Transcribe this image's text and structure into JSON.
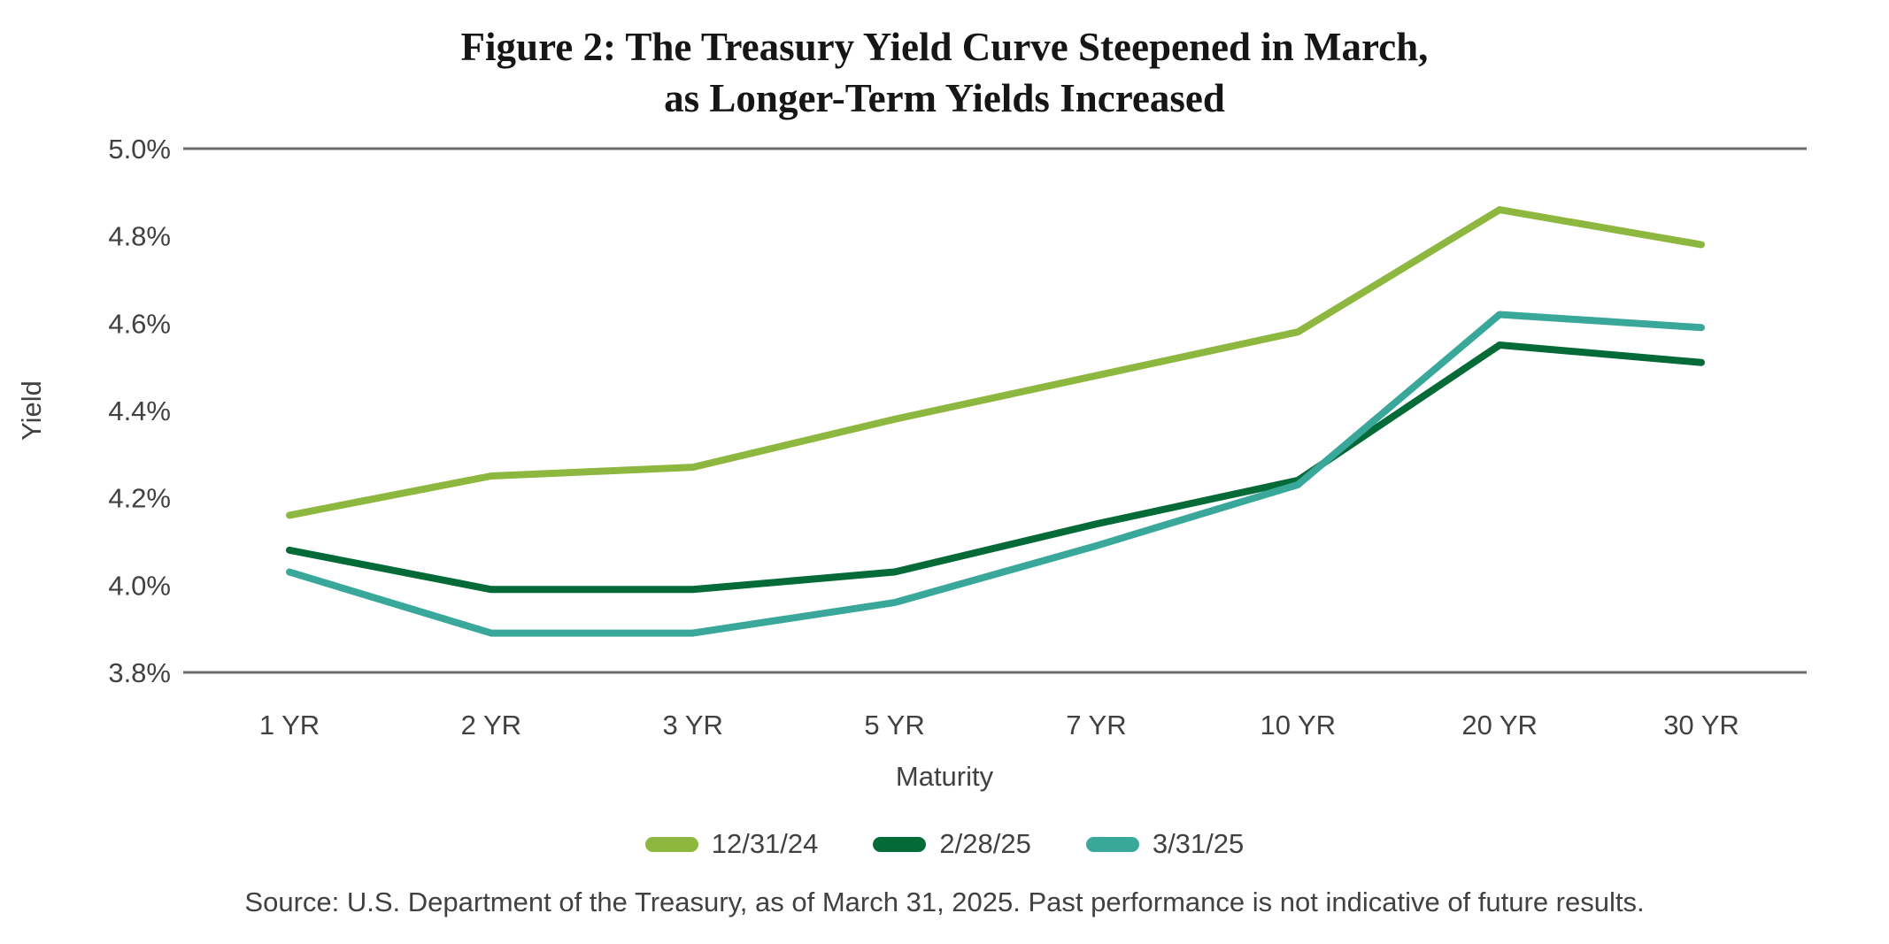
{
  "title": {
    "line1": "Figure 2: The Treasury Yield Curve Steepened in March,",
    "line2": "as Longer-Term Yields Increased"
  },
  "chart_data": {
    "type": "line",
    "categories": [
      "1 YR",
      "2 YR",
      "3 YR",
      "5 YR",
      "7 YR",
      "10 YR",
      "20 YR",
      "30 YR"
    ],
    "series": [
      {
        "name": "12/31/24",
        "color": "#8DB73E",
        "values": [
          4.16,
          4.25,
          4.27,
          4.38,
          4.48,
          4.58,
          4.86,
          4.78
        ]
      },
      {
        "name": "2/28/25",
        "color": "#046A38",
        "values": [
          4.08,
          3.99,
          3.99,
          4.03,
          4.14,
          4.24,
          4.55,
          4.51
        ]
      },
      {
        "name": "3/31/25",
        "color": "#3AA79B",
        "values": [
          4.03,
          3.89,
          3.89,
          3.96,
          4.09,
          4.23,
          4.62,
          4.59
        ]
      }
    ],
    "xlabel": "Maturity",
    "ylabel": "Yield",
    "ylim": [
      3.8,
      5.0
    ],
    "yticks": [
      5.0,
      4.8,
      4.6,
      4.4,
      4.2,
      4.0,
      3.8
    ],
    "ytick_suffix": "%",
    "grid": "boundary-lines-only",
    "legend_position": "bottom",
    "axis_color": "#6D6E71",
    "line_width": 8
  },
  "source": "Source: U.S. Department of the Treasury, as of March 31, 2025. Past performance is not indicative of future results."
}
